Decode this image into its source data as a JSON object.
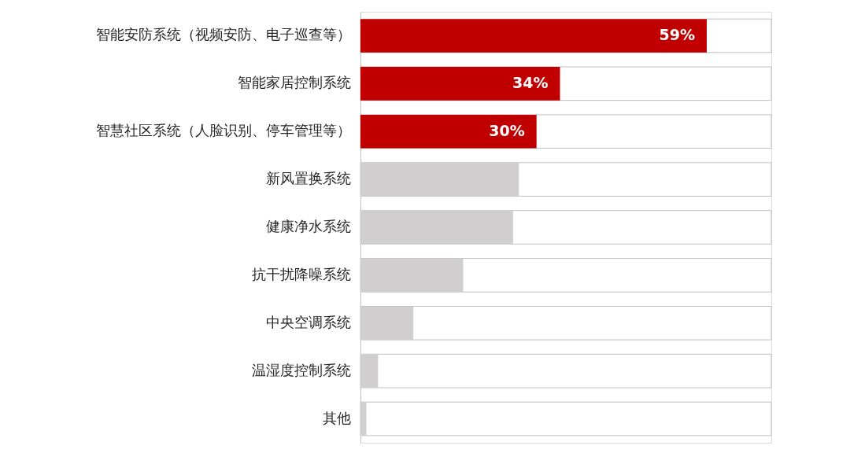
{
  "chart_data": {
    "type": "bar",
    "orientation": "horizontal",
    "categories": [
      "智能安防系统（视频安防、电子巡查等）",
      "智能家居控制系统",
      "智慧社区系统（人脸识别、停车管理等）",
      "新风置换系统",
      "健康净水系统",
      "抗干扰降噪系统",
      "中央空调系统",
      "温湿度控制系统",
      "其他"
    ],
    "values": [
      59,
      34,
      30,
      27,
      26,
      17.5,
      9,
      3,
      1
    ],
    "colors": [
      "#c00000",
      "#c00000",
      "#c00000",
      "#d0cece",
      "#d0cece",
      "#d0cece",
      "#d0cece",
      "#d0cece",
      "#d0cece"
    ],
    "value_labels": [
      "59%",
      "34%",
      "30%",
      null,
      null,
      null,
      null,
      null,
      null
    ],
    "xlim": [
      0,
      70
    ],
    "tick_labels": "y"
  }
}
